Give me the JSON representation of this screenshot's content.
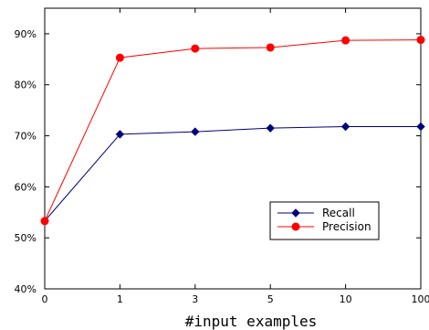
{
  "chart_data": {
    "type": "line",
    "title": "",
    "xlabel": "#input examples",
    "ylabel": "",
    "categories": [
      "0",
      "1",
      "3",
      "5",
      "10",
      "100"
    ],
    "y_ticks": [
      "40%",
      "50%",
      "60%",
      "70%",
      "80%",
      "90%"
    ],
    "ylim": [
      40,
      95
    ],
    "grid": false,
    "legend_position": "bottom-right",
    "series": [
      {
        "name": "Recall",
        "color": "#00007a",
        "marker": "diamond",
        "values": [
          53.3,
          70.3,
          70.8,
          71.5,
          71.8,
          71.8
        ]
      },
      {
        "name": "Precision",
        "color": "#ff0000",
        "marker": "circle",
        "values": [
          53.3,
          85.3,
          87.1,
          87.3,
          88.7,
          88.8
        ]
      }
    ]
  }
}
